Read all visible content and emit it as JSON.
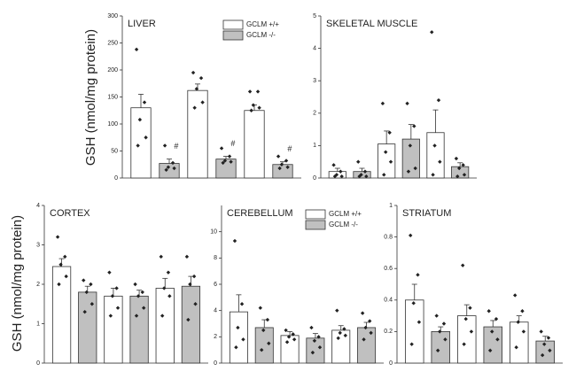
{
  "chart_data": [
    {
      "type": "bar",
      "title": "LIVER",
      "ylabel": "GSH (nmol/mg protein)",
      "categories": [
        null,
        null,
        null
      ],
      "ylim": [
        0,
        300
      ],
      "yticks": [
        0,
        50,
        100,
        150,
        200,
        250,
        300
      ],
      "legend": "upper right",
      "series": [
        {
          "name": "GCLM +/+",
          "color": "#ffffff",
          "values": [
            130,
            162,
            125
          ],
          "errors": [
            25,
            12,
            10
          ],
          "points": [
            [
              238,
              140,
              108,
              75,
              60
            ],
            [
              195,
              185,
              165,
              140,
              130
            ],
            [
              160,
              160,
              135,
              130,
              125
            ]
          ]
        },
        {
          "name": "GCLM -/-",
          "color": "#c0c0c0",
          "values": [
            27,
            35,
            25
          ],
          "errors": [
            8,
            5,
            5
          ],
          "points": [
            [
              60,
              28,
              20,
              18,
              15
            ],
            [
              55,
              40,
              32,
              30,
              28
            ],
            [
              40,
              32,
              25,
              20,
              18
            ]
          ],
          "annotations": [
            "#",
            "#",
            "#"
          ]
        }
      ]
    },
    {
      "type": "bar",
      "title": "SKELETAL MUSCLE",
      "categories": [
        null,
        null,
        null
      ],
      "ylim": [
        0,
        5
      ],
      "yticks": [
        0,
        1,
        2,
        3,
        4,
        5
      ],
      "series": [
        {
          "color": "#ffffff",
          "values": [
            0.2,
            1.05,
            1.4
          ],
          "errors": [
            0.1,
            0.4,
            0.7
          ],
          "points": [
            [
              0.4,
              0.2,
              0.1,
              0.05,
              0.05
            ],
            [
              2.3,
              1.4,
              0.8,
              0.5,
              0.1
            ],
            [
              4.5,
              2.4,
              1.0,
              0.5,
              0.1
            ]
          ]
        },
        {
          "color": "#c0c0c0",
          "values": [
            0.2,
            1.2,
            0.35
          ],
          "errors": [
            0.1,
            0.45,
            0.12
          ],
          "points": [
            [
              0.5,
              0.2,
              0.1,
              0.05,
              0.05
            ],
            [
              2.3,
              1.6,
              1.0,
              0.3,
              0.2
            ],
            [
              0.6,
              0.4,
              0.3,
              0.1,
              0.05
            ]
          ]
        }
      ]
    },
    {
      "type": "bar",
      "title": "CORTEX",
      "ylabel": "GSH (nmol/mg protein)",
      "categories": [
        null,
        null,
        null
      ],
      "ylim": [
        0,
        4
      ],
      "yticks": [
        0,
        1,
        2,
        3,
        4
      ],
      "series": [
        {
          "color": "#ffffff",
          "values": [
            2.45,
            1.7,
            1.9
          ],
          "errors": [
            0.2,
            0.2,
            0.25
          ],
          "points": [
            [
              3.2,
              2.7,
              2.5,
              2.2,
              2.0
            ],
            [
              2.3,
              1.9,
              1.7,
              1.4,
              1.2
            ],
            [
              2.7,
              2.3,
              1.9,
              1.7,
              1.2
            ]
          ]
        },
        {
          "color": "#c0c0c0",
          "values": [
            1.8,
            1.7,
            1.95
          ],
          "errors": [
            0.15,
            0.15,
            0.25
          ],
          "points": [
            [
              2.1,
              2.0,
              1.8,
              1.5,
              1.3
            ],
            [
              2.0,
              1.8,
              1.7,
              1.4,
              1.2
            ],
            [
              2.7,
              2.2,
              2.0,
              1.5,
              1.1
            ]
          ]
        }
      ]
    },
    {
      "type": "bar",
      "title": "CEREBELLUM",
      "categories": [
        null,
        null,
        null
      ],
      "ylim": [
        0,
        12
      ],
      "yticks": [
        0,
        2,
        4,
        6,
        8,
        10
      ],
      "legend": "upper right",
      "series": [
        {
          "name": "GCLM +/+",
          "color": "#ffffff",
          "values": [
            3.9,
            2.1,
            2.5
          ],
          "errors": [
            1.3,
            0.3,
            0.35
          ],
          "points": [
            [
              9.3,
              4.5,
              2.7,
              1.8,
              1.2
            ],
            [
              2.5,
              2.2,
              2.0,
              1.8,
              1.6
            ],
            [
              4.0,
              2.6,
              2.3,
              2.1,
              1.9
            ]
          ]
        },
        {
          "name": "GCLM -/-",
          "color": "#c0c0c0",
          "values": [
            2.7,
            1.9,
            2.7
          ],
          "errors": [
            0.6,
            0.35,
            0.4
          ],
          "points": [
            [
              4.2,
              3.3,
              2.5,
              1.5,
              1.0
            ],
            [
              2.7,
              2.0,
              1.7,
              1.2,
              0.8
            ],
            [
              3.8,
              3.2,
              2.7,
              2.3,
              1.8
            ]
          ]
        }
      ]
    },
    {
      "type": "bar",
      "title": "STRIATUM",
      "categories": [
        null,
        null,
        null
      ],
      "ylim": [
        0,
        1
      ],
      "yticks": [
        0,
        0.2,
        0.4,
        0.6,
        0.8,
        1
      ],
      "series": [
        {
          "color": "#ffffff",
          "values": [
            0.4,
            0.3,
            0.26
          ],
          "errors": [
            0.1,
            0.07,
            0.04
          ],
          "points": [
            [
              0.81,
              0.56,
              0.38,
              0.26,
              0.12
            ],
            [
              0.62,
              0.35,
              0.28,
              0.2,
              0.12
            ],
            [
              0.43,
              0.33,
              0.26,
              0.2,
              0.1
            ]
          ]
        },
        {
          "color": "#c0c0c0",
          "values": [
            0.2,
            0.23,
            0.14
          ],
          "errors": [
            0.03,
            0.04,
            0.03
          ],
          "points": [
            [
              0.3,
              0.25,
              0.2,
              0.15,
              0.08
            ],
            [
              0.33,
              0.28,
              0.2,
              0.15,
              0.08
            ],
            [
              0.2,
              0.16,
              0.12,
              0.08,
              0.05
            ]
          ]
        }
      ]
    }
  ]
}
